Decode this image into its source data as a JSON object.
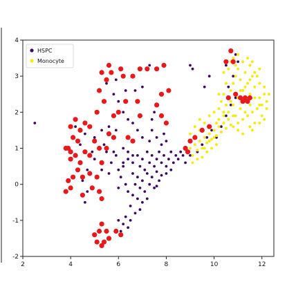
{
  "chart_data": {
    "type": "scatter",
    "title": "",
    "xlabel": "",
    "ylabel": "",
    "xlim": [
      2,
      12.5
    ],
    "ylim": [
      -2,
      4
    ],
    "xticks": [
      "2",
      "4",
      "6",
      "8",
      "10",
      "12"
    ],
    "yticks": [
      "-2",
      "-1",
      "0",
      "1",
      "2",
      "3",
      "4"
    ],
    "grid": false,
    "legend_position": "top-left",
    "legend_marker_colors": [
      "#3b0a5c",
      "#f5ea14"
    ],
    "series": [
      {
        "name": "HSPC",
        "color": "#3b0a5c",
        "points": [
          [
            2.5,
            1.7
          ],
          [
            4.2,
            1.6
          ],
          [
            4.6,
            1.4
          ],
          [
            5.0,
            1.3
          ],
          [
            5.3,
            1.5
          ],
          [
            5.6,
            1.6
          ],
          [
            5.9,
            1.5
          ],
          [
            4.4,
            1.1
          ],
          [
            4.9,
            0.9
          ],
          [
            5.4,
            1.1
          ],
          [
            5.8,
            0.9
          ],
          [
            6.2,
            1.0
          ],
          [
            6.6,
            0.8
          ],
          [
            5.0,
            0.7
          ],
          [
            4.7,
            0.4
          ],
          [
            4.5,
            0.1
          ],
          [
            4.7,
            -0.2
          ],
          [
            4.6,
            -0.5
          ],
          [
            5.3,
            0.4
          ],
          [
            5.7,
            0.6
          ],
          [
            6.2,
            0.5
          ],
          [
            6.4,
            0.7
          ],
          [
            6.6,
            0.6
          ],
          [
            6.8,
            0.8
          ],
          [
            6.9,
            0.5
          ],
          [
            7.0,
            0.7
          ],
          [
            7.1,
            0.4
          ],
          [
            7.2,
            0.9
          ],
          [
            7.3,
            0.6
          ],
          [
            7.4,
            0.8
          ],
          [
            7.5,
            0.5
          ],
          [
            7.6,
            0.7
          ],
          [
            7.7,
            0.9
          ],
          [
            7.8,
            0.6
          ],
          [
            7.9,
            0.8
          ],
          [
            8.0,
            0.5
          ],
          [
            8.1,
            0.7
          ],
          [
            8.2,
            0.9
          ],
          [
            8.3,
            0.6
          ],
          [
            8.4,
            0.8
          ],
          [
            8.5,
            0.7
          ],
          [
            8.6,
            0.9
          ],
          [
            8.7,
            0.8
          ],
          [
            8.8,
            0.6
          ],
          [
            8.9,
            0.9
          ],
          [
            9.0,
            0.8
          ],
          [
            6.6,
            0.3
          ],
          [
            6.8,
            0.2
          ],
          [
            7.0,
            0.1
          ],
          [
            7.2,
            0.3
          ],
          [
            7.4,
            0.2
          ],
          [
            7.6,
            0.35
          ],
          [
            7.8,
            0.25
          ],
          [
            6.7,
            0.0
          ],
          [
            6.9,
            -0.1
          ],
          [
            7.1,
            -0.2
          ],
          [
            7.3,
            0.0
          ],
          [
            7.5,
            -0.1
          ],
          [
            6.6,
            -0.3
          ],
          [
            6.8,
            -0.4
          ],
          [
            7.0,
            -0.5
          ],
          [
            7.2,
            -0.4
          ],
          [
            6.5,
            -0.6
          ],
          [
            6.7,
            -0.8
          ],
          [
            6.9,
            -0.7
          ],
          [
            6.3,
            -0.9
          ],
          [
            6.5,
            -1.0
          ],
          [
            6.2,
            -1.1
          ],
          [
            6.4,
            -1.2
          ],
          [
            6.1,
            -1.3
          ],
          [
            6.0,
            -1.0
          ],
          [
            7.8,
            1.1
          ],
          [
            7.9,
            1.4
          ],
          [
            8.0,
            1.2
          ],
          [
            7.6,
            1.3
          ],
          [
            7.4,
            1.5
          ],
          [
            7.3,
            1.2
          ],
          [
            7.0,
            1.3
          ],
          [
            6.8,
            1.5
          ],
          [
            6.6,
            1.7
          ],
          [
            6.4,
            1.8
          ],
          [
            6.2,
            2.0
          ],
          [
            6.0,
            2.3
          ],
          [
            6.3,
            2.6
          ],
          [
            5.8,
            2.5
          ],
          [
            5.9,
            2.9
          ],
          [
            5.5,
            2.8
          ],
          [
            7.4,
            1.8
          ],
          [
            7.5,
            2.0
          ],
          [
            7.0,
            2.7
          ],
          [
            6.7,
            2.6
          ],
          [
            7.3,
            3.3
          ],
          [
            9.1,
            3.2
          ],
          [
            9.0,
            3.3
          ],
          [
            9.3,
            0.9
          ],
          [
            9.5,
            1.1
          ],
          [
            9.7,
            1.3
          ],
          [
            9.9,
            1.5
          ],
          [
            10.1,
            1.3
          ],
          [
            10.3,
            1.6
          ],
          [
            10.5,
            1.9
          ],
          [
            10.7,
            2.2
          ],
          [
            10.9,
            2.4
          ],
          [
            10.6,
            2.7
          ],
          [
            10.8,
            3.0
          ],
          [
            10.9,
            3.6
          ],
          [
            11.0,
            3.4
          ],
          [
            10.5,
            3.3
          ],
          [
            9.8,
            3.0
          ],
          [
            9.6,
            2.7
          ],
          [
            6.4,
            0.9
          ],
          [
            6.2,
            0.6
          ],
          [
            6.0,
            0.4
          ],
          [
            6.1,
            0.2
          ],
          [
            5.9,
            0.8
          ],
          [
            5.6,
            0.3
          ],
          [
            5.5,
            0.9
          ],
          [
            6.4,
            -0.2
          ],
          [
            6.0,
            -0.1
          ],
          [
            6.3,
            0.0
          ],
          [
            7.6,
            -0.05
          ],
          [
            7.7,
            0.1
          ],
          [
            8.0,
            0.3
          ],
          [
            8.2,
            0.4
          ]
        ]
      },
      {
        "name": "Monocyte",
        "color": "#f5ea14",
        "points": [
          [
            8.9,
            0.9
          ],
          [
            9.0,
            1.0
          ],
          [
            9.1,
            0.8
          ],
          [
            9.2,
            1.1
          ],
          [
            9.3,
            0.95
          ],
          [
            9.4,
            1.2
          ],
          [
            9.5,
            1.0
          ],
          [
            9.6,
            1.3
          ],
          [
            9.7,
            1.15
          ],
          [
            9.8,
            1.4
          ],
          [
            9.9,
            1.25
          ],
          [
            10.0,
            1.5
          ],
          [
            10.1,
            1.35
          ],
          [
            10.2,
            1.6
          ],
          [
            10.3,
            1.45
          ],
          [
            10.4,
            1.7
          ],
          [
            10.5,
            1.55
          ],
          [
            10.6,
            1.8
          ],
          [
            10.7,
            1.65
          ],
          [
            10.8,
            1.9
          ],
          [
            9.0,
            1.4
          ],
          [
            9.2,
            1.6
          ],
          [
            9.4,
            1.8
          ],
          [
            9.6,
            1.7
          ],
          [
            9.8,
            1.9
          ],
          [
            10.0,
            2.0
          ],
          [
            10.2,
            2.1
          ],
          [
            9.1,
            0.6
          ],
          [
            9.3,
            0.7
          ],
          [
            9.5,
            0.75
          ],
          [
            9.7,
            0.9
          ],
          [
            9.9,
            1.0
          ],
          [
            10.1,
            1.1
          ],
          [
            10.4,
            2.0
          ],
          [
            10.5,
            2.2
          ],
          [
            10.6,
            2.4
          ],
          [
            10.7,
            2.6
          ],
          [
            10.8,
            2.8
          ],
          [
            10.9,
            3.0
          ],
          [
            11.0,
            3.2
          ],
          [
            10.6,
            2.0
          ],
          [
            10.8,
            2.2
          ],
          [
            11.0,
            2.4
          ],
          [
            11.2,
            2.6
          ],
          [
            11.4,
            2.8
          ],
          [
            11.6,
            3.0
          ],
          [
            11.1,
            2.1
          ],
          [
            11.3,
            2.3
          ],
          [
            11.5,
            2.5
          ],
          [
            11.7,
            2.7
          ],
          [
            11.9,
            2.4
          ],
          [
            12.0,
            2.2
          ],
          [
            12.1,
            2.5
          ],
          [
            11.2,
            1.8
          ],
          [
            11.4,
            1.9
          ],
          [
            11.6,
            2.0
          ],
          [
            11.8,
            2.1
          ],
          [
            12.0,
            1.9
          ],
          [
            11.7,
            1.7
          ],
          [
            11.5,
            1.6
          ],
          [
            11.0,
            1.7
          ],
          [
            10.9,
            1.9
          ],
          [
            11.1,
            2.9
          ],
          [
            11.3,
            3.1
          ],
          [
            11.5,
            3.3
          ],
          [
            11.2,
            3.4
          ],
          [
            11.0,
            3.6
          ],
          [
            10.8,
            3.5
          ],
          [
            10.9,
            3.3
          ],
          [
            11.4,
            3.5
          ],
          [
            11.6,
            3.4
          ],
          [
            11.8,
            3.0
          ],
          [
            11.9,
            2.8
          ],
          [
            12.1,
            2.7
          ],
          [
            10.5,
            2.8
          ],
          [
            10.4,
            2.5
          ],
          [
            10.3,
            2.3
          ],
          [
            10.2,
            2.5
          ],
          [
            10.4,
            3.1
          ],
          [
            10.6,
            3.2
          ],
          [
            10.7,
            3.4
          ],
          [
            11.3,
            2.0
          ],
          [
            11.5,
            2.2
          ],
          [
            11.7,
            2.4
          ],
          [
            11.9,
            2.2
          ],
          [
            12.2,
            2.3
          ],
          [
            12.3,
            2.5
          ],
          [
            12.2,
            2.1
          ],
          [
            10.7,
            2.3
          ],
          [
            10.9,
            2.5
          ],
          [
            11.1,
            2.6
          ],
          [
            11.3,
            2.7
          ],
          [
            11.5,
            2.9
          ],
          [
            11.7,
            3.1
          ],
          [
            11.9,
            3.2
          ],
          [
            10.8,
            1.6
          ],
          [
            11.0,
            1.5
          ],
          [
            11.2,
            1.4
          ],
          [
            11.6,
            1.5
          ],
          [
            11.9,
            1.7
          ],
          [
            12.1,
            1.8
          ],
          [
            9.2,
            1.3
          ],
          [
            9.4,
            1.5
          ],
          [
            9.6,
            1.0
          ],
          [
            9.8,
            1.2
          ],
          [
            10.0,
            1.3
          ],
          [
            10.2,
            1.8
          ],
          [
            10.4,
            1.9
          ],
          [
            10.1,
            1.7
          ]
        ]
      }
    ],
    "highlight_points": [
      [
        4.0,
        1.6
      ],
      [
        4.2,
        1.8
      ],
      [
        4.4,
        1.5
      ],
      [
        4.6,
        1.7
      ],
      [
        4.1,
        1.3
      ],
      [
        3.9,
        1.0
      ],
      [
        4.0,
        0.9
      ],
      [
        3.8,
        1.0
      ],
      [
        4.0,
        0.7
      ],
      [
        4.2,
        0.8
      ],
      [
        4.4,
        0.6
      ],
      [
        4.6,
        0.9
      ],
      [
        4.8,
        0.8
      ],
      [
        4.3,
        0.4
      ],
      [
        4.5,
        0.2
      ],
      [
        4.8,
        0.3
      ],
      [
        4.1,
        0.2
      ],
      [
        3.9,
        0.1
      ],
      [
        3.8,
        -0.2
      ],
      [
        4.0,
        -0.1
      ],
      [
        4.5,
        -0.3
      ],
      [
        4.9,
        -0.1
      ],
      [
        5.2,
        -0.2
      ],
      [
        5.3,
        -0.4
      ],
      [
        5.1,
        0.2
      ],
      [
        5.3,
        0.6
      ],
      [
        5.5,
        1.0
      ],
      [
        5.0,
        1.2
      ],
      [
        5.2,
        1.0
      ],
      [
        5.6,
        1.4
      ],
      [
        5.8,
        1.3
      ],
      [
        4.8,
        1.6
      ],
      [
        4.3,
        1.2
      ],
      [
        5.1,
        2.0
      ],
      [
        5.4,
        2.3
      ],
      [
        5.2,
        2.6
      ],
      [
        5.5,
        2.9
      ],
      [
        5.3,
        3.1
      ],
      [
        5.7,
        3.1
      ],
      [
        5.6,
        3.3
      ],
      [
        6.1,
        3.2
      ],
      [
        6.2,
        3.0
      ],
      [
        6.6,
        3.0
      ],
      [
        6.9,
        3.2
      ],
      [
        7.2,
        3.2
      ],
      [
        7.6,
        3.2
      ],
      [
        7.9,
        3.3
      ],
      [
        8.1,
        2.6
      ],
      [
        7.8,
        2.5
      ],
      [
        7.6,
        2.2
      ],
      [
        7.8,
        1.9
      ],
      [
        8.0,
        1.7
      ],
      [
        6.8,
        2.3
      ],
      [
        6.9,
        1.9
      ],
      [
        6.3,
        2.3
      ],
      [
        6.0,
        2.0
      ],
      [
        5.8,
        1.9
      ],
      [
        6.4,
        1.3
      ],
      [
        6.6,
        1.2
      ],
      [
        5.3,
        -1.1
      ],
      [
        5.2,
        -1.3
      ],
      [
        5.0,
        -1.4
      ],
      [
        5.1,
        -1.6
      ],
      [
        5.3,
        -1.7
      ],
      [
        5.6,
        -1.5
      ],
      [
        5.5,
        -1.3
      ],
      [
        5.9,
        -1.3
      ],
      [
        6.1,
        -1.4
      ],
      [
        5.4,
        -1.6
      ],
      [
        8.8,
        1.0
      ],
      [
        8.9,
        0.9
      ],
      [
        9.0,
        1.2
      ],
      [
        9.2,
        1.3
      ],
      [
        9.5,
        1.5
      ],
      [
        9.8,
        1.6
      ],
      [
        10.7,
        3.7
      ],
      [
        10.8,
        3.4
      ],
      [
        10.5,
        3.4
      ],
      [
        10.6,
        2.4
      ],
      [
        10.9,
        2.5
      ],
      [
        11.1,
        2.4
      ],
      [
        11.3,
        2.4
      ],
      [
        11.5,
        2.4
      ],
      [
        11.4,
        2.3
      ],
      [
        11.2,
        2.3
      ]
    ],
    "highlight_color": "#e8191c"
  },
  "legend": {
    "items": [
      {
        "label": "HSPC"
      },
      {
        "label": "Monocyte"
      }
    ]
  }
}
